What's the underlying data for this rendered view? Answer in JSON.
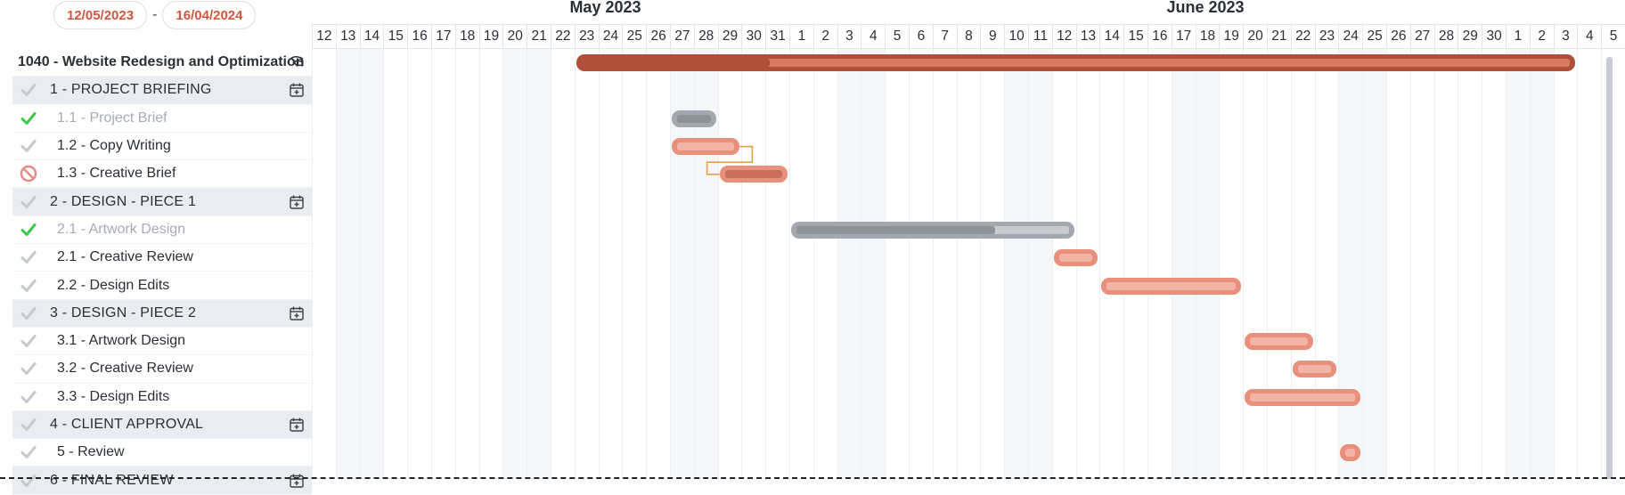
{
  "date_range": {
    "start": "12/05/2023",
    "separator": "-",
    "end": "16/04/2024"
  },
  "months": [
    {
      "label": "May 2023",
      "col": 10.8
    },
    {
      "label": "June 2023",
      "col": 35.8
    }
  ],
  "days": [
    "12",
    "13",
    "14",
    "15",
    "16",
    "17",
    "18",
    "19",
    "20",
    "21",
    "22",
    "23",
    "24",
    "25",
    "26",
    "27",
    "28",
    "29",
    "30",
    "31",
    "1",
    "2",
    "3",
    "4",
    "5",
    "6",
    "7",
    "8",
    "9",
    "10",
    "11",
    "12",
    "13",
    "14",
    "15",
    "16",
    "17",
    "18",
    "19",
    "20",
    "21",
    "22",
    "23",
    "24",
    "25",
    "26",
    "27",
    "28",
    "29",
    "30",
    "1",
    "2",
    "3",
    "4",
    "5"
  ],
  "weekend_cols": [
    1,
    2,
    8,
    9,
    15,
    16,
    22,
    23,
    29,
    30,
    36,
    37,
    43,
    44,
    50,
    51
  ],
  "rows": [
    {
      "kind": "project",
      "label": "1040 - Website Redesign and Optimization",
      "icon": "project-icon"
    },
    {
      "kind": "group",
      "label": "1 - PROJECT BRIEFING",
      "icon": "calendar-add-icon"
    },
    {
      "kind": "task",
      "label": "1.1 - Project Brief",
      "status": "done"
    },
    {
      "kind": "task",
      "label": "1.2 - Copy Writing",
      "status": "open"
    },
    {
      "kind": "task",
      "label": "1.3 - Creative Brief",
      "status": "blocked"
    },
    {
      "kind": "group",
      "label": "2 - DESIGN - PIECE 1",
      "icon": "calendar-add-icon"
    },
    {
      "kind": "task",
      "label": "2.1 - Artwork Design",
      "status": "done"
    },
    {
      "kind": "task",
      "label": "2.1 - Creative Review",
      "status": "open"
    },
    {
      "kind": "task",
      "label": "2.2 - Design Edits",
      "status": "open"
    },
    {
      "kind": "group",
      "label": "3 - DESIGN - PIECE 2",
      "icon": "calendar-add-icon"
    },
    {
      "kind": "task",
      "label": "3.1 - Artwork Design",
      "status": "open"
    },
    {
      "kind": "task",
      "label": "3.2 - Creative Review",
      "status": "open"
    },
    {
      "kind": "task",
      "label": "3.3 - Design Edits",
      "status": "open"
    },
    {
      "kind": "group",
      "label": "4 - CLIENT APPROVAL",
      "icon": "calendar-add-icon"
    },
    {
      "kind": "task",
      "label": "5 - Review",
      "status": "open"
    },
    {
      "kind": "group",
      "label": "6 - FINAL REVIEW",
      "icon": "calendar-add-icon"
    }
  ],
  "bars": [
    {
      "row": 0,
      "start": 11,
      "end": 53,
      "progress": 0.19,
      "style": "project"
    },
    {
      "row": 2,
      "start": 15,
      "end": 17,
      "progress": 1.0,
      "style": "grey"
    },
    {
      "row": 3,
      "start": 15,
      "end": 18,
      "progress": 0,
      "style": "orange"
    },
    {
      "row": 4,
      "start": 17,
      "end": 20,
      "progress": 1.0,
      "style": "orange-dark"
    },
    {
      "row": 6,
      "start": 20,
      "end": 32,
      "progress": 0.73,
      "style": "grey"
    },
    {
      "row": 7,
      "start": 31,
      "end": 33,
      "progress": 0,
      "style": "orange"
    },
    {
      "row": 8,
      "start": 33,
      "end": 39,
      "progress": 0,
      "style": "orange"
    },
    {
      "row": 10,
      "start": 39,
      "end": 42,
      "progress": 0,
      "style": "orange"
    },
    {
      "row": 11,
      "start": 41,
      "end": 43,
      "progress": 0,
      "style": "orange"
    },
    {
      "row": 12,
      "start": 39,
      "end": 44,
      "progress": 0,
      "style": "orange"
    },
    {
      "row": 14,
      "start": 43,
      "end": 44,
      "progress": 0,
      "style": "orange"
    }
  ],
  "colors": {
    "accent": "#d0573f",
    "bar_orange": "#e9907c",
    "bar_orange_inner": "#f2b4a6",
    "bar_project": "#d97a63",
    "bar_project_progress": "#b0503b",
    "bar_grey": "#a3a8b0",
    "bar_grey_inner": "#c7cbd1",
    "check_done": "#3cc84a",
    "check_open": "#c6c9ce",
    "blocked": "#e48a86",
    "dependency": "#e3a046"
  }
}
